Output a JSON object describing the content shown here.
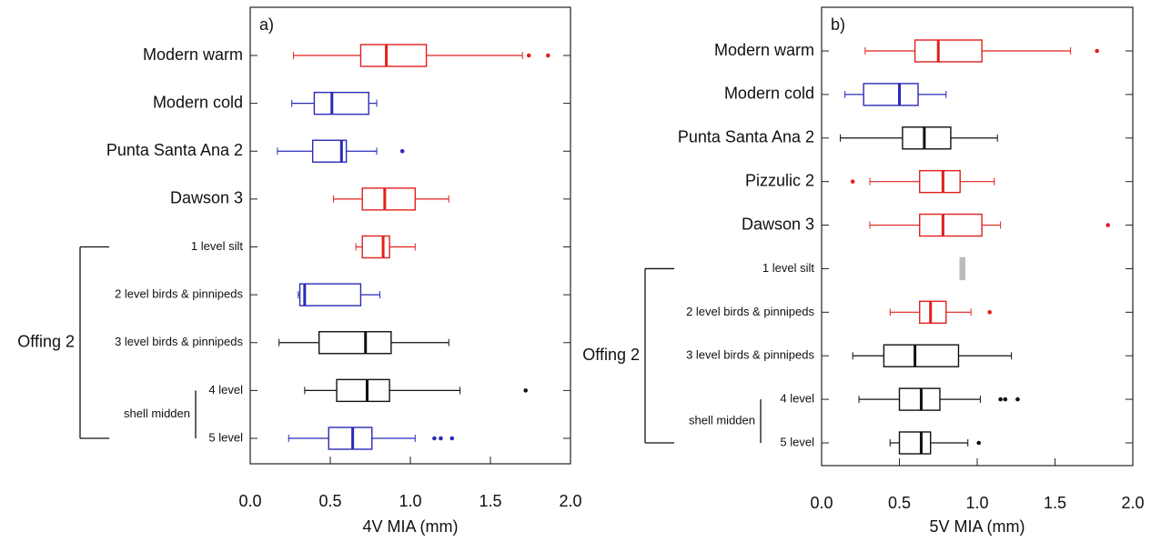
{
  "chart_data": [
    {
      "type": "box",
      "panel_label": "a)",
      "xlabel": "4V MIA (mm)",
      "categories": [
        "Modern warm",
        "Modern cold",
        "Punta Santa Ana 2",
        "Dawson 3",
        "1 level silt",
        "2 level birds & pinnipeds",
        "3 level birds & pinnipeds",
        "4 level",
        "5 level"
      ],
      "stats": [
        [
          0.27,
          0.69,
          0.85,
          1.1,
          1.7
        ],
        [
          0.26,
          0.4,
          0.51,
          0.74,
          0.79
        ],
        [
          0.17,
          0.39,
          0.57,
          0.6,
          0.79
        ],
        [
          0.52,
          0.7,
          0.84,
          1.03,
          1.24
        ],
        [
          0.66,
          0.7,
          0.83,
          0.87,
          1.03
        ],
        [
          0.3,
          0.31,
          0.34,
          0.69,
          0.81
        ],
        [
          0.18,
          0.43,
          0.72,
          0.88,
          1.24
        ],
        [
          0.34,
          0.54,
          0.73,
          0.87,
          1.31
        ],
        [
          0.24,
          0.49,
          0.64,
          0.76,
          1.03
        ]
      ],
      "outliers": [
        [
          1.74,
          1.86
        ],
        [],
        [
          0.95
        ],
        [],
        [],
        [],
        [],
        [
          1.72
        ],
        [
          1.15,
          1.19,
          1.26
        ]
      ],
      "colors": [
        "#e0201e",
        "#2a2ab8",
        "#2a2ab8",
        "#e0201e",
        "#e0201e",
        "#2a2ab8",
        "#111111",
        "#111111",
        "#2a2ab8"
      ],
      "groups": [
        {
          "label": "Offing 2",
          "from": 4,
          "to": 8
        },
        {
          "label": "shell midden",
          "from": 7,
          "to": 8
        }
      ],
      "xlim": [
        0,
        2
      ],
      "xticks": [
        {
          "value": 0,
          "label": "0.0"
        },
        {
          "value": 0.5,
          "label": "0.5"
        },
        {
          "value": 1,
          "label": "1.0"
        },
        {
          "value": 1.5,
          "label": "1.5"
        },
        {
          "value": 2,
          "label": "2.0"
        }
      ]
    },
    {
      "type": "box",
      "panel_label": "b)",
      "xlabel": "5V MIA (mm)",
      "categories": [
        "Modern warm",
        "Modern cold",
        "Punta Santa Ana 2",
        "Pizzulic 2",
        "Dawson 3",
        "1 level silt",
        "2 level birds & pinnipeds",
        "3 level birds & pinnipeds",
        "4 level",
        "5 level"
      ],
      "stats": [
        [
          0.28,
          0.6,
          0.75,
          1.03,
          1.6
        ],
        [
          0.15,
          0.27,
          0.5,
          0.62,
          0.8
        ],
        [
          0.12,
          0.52,
          0.66,
          0.83,
          1.13
        ],
        [
          0.31,
          0.63,
          0.78,
          0.89,
          1.11
        ],
        [
          0.31,
          0.63,
          0.78,
          1.03,
          1.15
        ],
        [
          0.89,
          0.89,
          0.9,
          0.92,
          0.92
        ],
        [
          0.44,
          0.63,
          0.7,
          0.8,
          0.96
        ],
        [
          0.2,
          0.4,
          0.6,
          0.88,
          1.22
        ],
        [
          0.24,
          0.5,
          0.64,
          0.76,
          1.02
        ],
        [
          0.44,
          0.5,
          0.64,
          0.7,
          0.94
        ]
      ],
      "outliers": [
        [
          1.77
        ],
        [],
        [],
        [
          0.2
        ],
        [
          1.84
        ],
        [],
        [
          1.08
        ],
        [],
        [
          1.15,
          1.18,
          1.26
        ],
        [
          1.01
        ]
      ],
      "colors": [
        "#e0201e",
        "#2a2ab8",
        "#111111",
        "#e0201e",
        "#e0201e",
        "#bbbbbb",
        "#e0201e",
        "#111111",
        "#111111",
        "#111111"
      ],
      "groups": [
        {
          "label": "Offing 2",
          "from": 5,
          "to": 9
        },
        {
          "label": "shell midden",
          "from": 8,
          "to": 9
        }
      ],
      "xlim": [
        0,
        2
      ],
      "xticks": [
        {
          "value": 0,
          "label": "0.0"
        },
        {
          "value": 0.5,
          "label": "0.5"
        },
        {
          "value": 1,
          "label": "1.0"
        },
        {
          "value": 1.5,
          "label": "1.5"
        },
        {
          "value": 2,
          "label": "2.0"
        }
      ]
    }
  ]
}
